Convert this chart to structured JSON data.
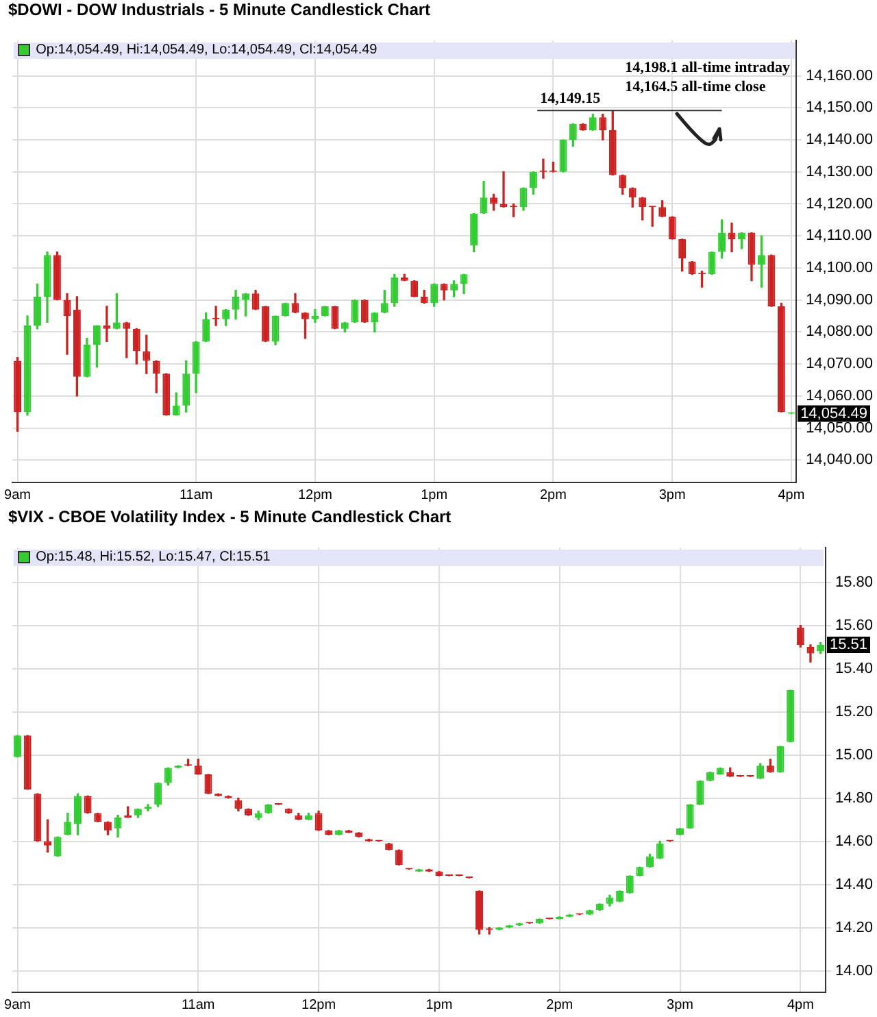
{
  "chart_data": [
    {
      "type": "candlestick",
      "title": "$DOWI - DOW Industrials - 5 Minute Candlestick Chart",
      "grid": true,
      "categories": [
        "9am",
        null,
        null,
        null,
        null,
        null,
        null,
        null,
        null,
        null,
        null,
        null,
        null,
        null,
        null,
        null,
        null,
        null,
        "11am",
        null,
        null,
        null,
        null,
        null,
        null,
        null,
        null,
        null,
        null,
        null,
        "12pm",
        null,
        null,
        null,
        null,
        null,
        null,
        null,
        null,
        null,
        null,
        null,
        "1pm",
        null,
        null,
        null,
        null,
        null,
        null,
        null,
        null,
        null,
        null,
        null,
        "2pm",
        null,
        null,
        null,
        null,
        null,
        null,
        null,
        null,
        null,
        null,
        null,
        "3pm",
        null,
        null,
        null,
        null,
        null,
        null,
        null,
        null,
        null,
        null,
        null,
        "4pm"
      ],
      "ohlc": [
        [
          14071,
          14072,
          14049,
          14055
        ],
        [
          14055,
          14085,
          14054,
          14082
        ],
        [
          14082,
          14095,
          14081,
          14091
        ],
        [
          14091,
          14105,
          14083,
          14104
        ],
        [
          14104,
          14105,
          14090,
          14090
        ],
        [
          14090,
          14092,
          14073,
          14085
        ],
        [
          14087,
          14091,
          14060,
          14066
        ],
        [
          14066,
          14078,
          14066,
          14076
        ],
        [
          14076,
          14082,
          14069,
          14082
        ],
        [
          14082,
          14088,
          14077,
          14081
        ],
        [
          14081,
          14092,
          14081,
          14083
        ],
        [
          14083,
          14083,
          14072,
          14081
        ],
        [
          14081,
          14081,
          14070,
          14074
        ],
        [
          14074,
          14079,
          14067,
          14071
        ],
        [
          14071,
          14071,
          14061,
          14067
        ],
        [
          14067,
          14067,
          14054,
          14054
        ],
        [
          14054,
          14061,
          14054,
          14057
        ],
        [
          14057,
          14071,
          14055,
          14067
        ],
        [
          14067,
          14077,
          14061,
          14077
        ],
        [
          14077,
          14086,
          14077,
          14084
        ],
        [
          14084,
          14088,
          14082,
          14084
        ],
        [
          14084,
          14087,
          14082,
          14087
        ],
        [
          14087,
          14093,
          14084,
          14091
        ],
        [
          14090,
          14092,
          14085,
          14092
        ],
        [
          14092,
          14093,
          14087,
          14087
        ],
        [
          14088,
          14088,
          14077,
          14077
        ],
        [
          14077,
          14085,
          14076,
          14085
        ],
        [
          14085,
          14089,
          14085,
          14089
        ],
        [
          14089,
          14092,
          14086,
          14086
        ],
        [
          14086,
          14086,
          14078,
          14084
        ],
        [
          14084,
          14087,
          14083,
          14085
        ],
        [
          14085,
          14088,
          14085,
          14088
        ],
        [
          14088,
          14088,
          14081,
          14081
        ],
        [
          14081,
          14083,
          14080,
          14083
        ],
        [
          14083,
          14090,
          14083,
          14090
        ],
        [
          14090,
          14090,
          14083,
          14083
        ],
        [
          14083,
          14086,
          14080,
          14086
        ],
        [
          14086,
          14093,
          14086,
          14089
        ],
        [
          14089,
          14098,
          14088,
          14097
        ],
        [
          14097,
          14098,
          14096,
          14096
        ],
        [
          14096,
          14096,
          14091,
          14091
        ],
        [
          14091,
          14093,
          14089,
          14089
        ],
        [
          14089,
          14095,
          14088,
          14095
        ],
        [
          14095,
          14095,
          14090,
          14093
        ],
        [
          14093,
          14096,
          14091,
          14095
        ],
        [
          14095,
          14098,
          14092,
          14098
        ],
        [
          14107,
          14117,
          14105,
          14117
        ],
        [
          14117,
          14127,
          14117,
          14122
        ],
        [
          14122,
          14123,
          14118,
          14120
        ],
        [
          14120,
          14130,
          14119,
          14119
        ],
        [
          14119,
          14120,
          14116,
          14119
        ],
        [
          14119,
          14125,
          14118,
          14125
        ],
        [
          14125,
          14130,
          14123,
          14130
        ],
        [
          14130,
          14134,
          14128,
          14130
        ],
        [
          14130,
          14133,
          14130,
          14130
        ],
        [
          14130,
          14140,
          14130,
          14140
        ],
        [
          14140,
          14145,
          14138,
          14145
        ],
        [
          14145,
          14145,
          14143,
          14143
        ],
        [
          14143,
          14148,
          14143,
          14147
        ],
        [
          14147,
          14148,
          14140,
          14143
        ],
        [
          14143,
          14149.15,
          14129,
          14129
        ],
        [
          14129,
          14129,
          14123,
          14125
        ],
        [
          14125,
          14125,
          14119,
          14122
        ],
        [
          14122,
          14122,
          14115,
          14119
        ],
        [
          14119,
          14119,
          14113,
          14119
        ],
        [
          14119,
          14121,
          14116,
          14116
        ],
        [
          14116,
          14116,
          14109,
          14109
        ],
        [
          14109,
          14109,
          14099,
          14103
        ],
        [
          14102,
          14102,
          14098,
          14098
        ],
        [
          14098,
          14099,
          14094,
          14098
        ],
        [
          14098,
          14105,
          14098,
          14105
        ],
        [
          14105,
          14115,
          14103,
          14111
        ],
        [
          14111,
          14114,
          14105,
          14109
        ],
        [
          14109,
          14111,
          14106,
          14111
        ],
        [
          14111,
          14111,
          14096,
          14101
        ],
        [
          14101,
          14110,
          14094,
          14104
        ],
        [
          14104,
          14104,
          14088,
          14088
        ],
        [
          14088,
          14089,
          14055,
          14055
        ],
        [
          14054.49,
          14054.49,
          14054.49,
          14054.49
        ]
      ],
      "colors": [
        "#cc2222",
        "#33cc33",
        "#33cc33",
        "#33cc33",
        "#cc2222",
        "#cc2222",
        "#cc2222",
        "#33cc33",
        "#33cc33",
        "#cc2222",
        "#33cc33",
        "#cc2222",
        "#cc2222",
        "#cc2222",
        "#cc2222",
        "#cc2222",
        "#33cc33",
        "#33cc33",
        "#33cc33",
        "#33cc33",
        "#cc2222",
        "#33cc33",
        "#33cc33",
        "#33cc33",
        "#cc2222",
        "#cc2222",
        "#33cc33",
        "#33cc33",
        "#cc2222",
        "#cc2222",
        "#33cc33",
        "#33cc33",
        "#cc2222",
        "#33cc33",
        "#33cc33",
        "#cc2222",
        "#33cc33",
        "#33cc33",
        "#33cc33",
        "#cc2222",
        "#cc2222",
        "#cc2222",
        "#33cc33",
        "#cc2222",
        "#33cc33",
        "#33cc33",
        "#33cc33",
        "#33cc33",
        "#cc2222",
        "#cc2222",
        "#cc2222",
        "#33cc33",
        "#33cc33",
        "#cc2222",
        "#cc2222",
        "#33cc33",
        "#33cc33",
        "#cc2222",
        "#33cc33",
        "#cc2222",
        "#cc2222",
        "#cc2222",
        "#cc2222",
        "#cc2222",
        "#cc2222",
        "#cc2222",
        "#cc2222",
        "#cc2222",
        "#cc2222",
        "#cc2222",
        "#33cc33",
        "#33cc33",
        "#cc2222",
        "#33cc33",
        "#cc2222",
        "#33cc33",
        "#cc2222",
        "#cc2222",
        "#33cc33"
      ],
      "ylim": [
        14033,
        14171
      ],
      "yticks": [
        {
          "value": 14040,
          "label": "14,040.00"
        },
        {
          "value": 14050,
          "label": "14,050.00"
        },
        {
          "value": 14060,
          "label": "14,060.00"
        },
        {
          "value": 14070,
          "label": "14,070.00"
        },
        {
          "value": 14080,
          "label": "14,080.00"
        },
        {
          "value": 14090,
          "label": "14,090.00"
        },
        {
          "value": 14100,
          "label": "14,100.00"
        },
        {
          "value": 14110,
          "label": "14,110.00"
        },
        {
          "value": 14120,
          "label": "14,120.00"
        },
        {
          "value": 14130,
          "label": "14,130.00"
        },
        {
          "value": 14140,
          "label": "14,140.00"
        },
        {
          "value": 14150,
          "label": "14,150.00"
        },
        {
          "value": 14160,
          "label": "14,160.00"
        }
      ],
      "annotations": [
        "Op:14,054.49, Hi:14,054.49, Lo:14,054.49, Cl:14,054.49",
        "14,198.1 all-time intraday",
        "14,164.5 all-time close",
        "14,149.15",
        "14,054.49"
      ]
    },
    {
      "type": "candlestick",
      "title": "$VIX - CBOE Volatility Index - 5 Minute Candlestick Chart",
      "grid": true,
      "categories": [
        "9am",
        null,
        null,
        null,
        null,
        null,
        null,
        null,
        null,
        null,
        null,
        null,
        null,
        null,
        null,
        null,
        null,
        null,
        "11am",
        null,
        null,
        null,
        null,
        null,
        null,
        null,
        null,
        null,
        null,
        null,
        "12pm",
        null,
        null,
        null,
        null,
        null,
        null,
        null,
        null,
        null,
        null,
        null,
        "1pm",
        null,
        null,
        null,
        null,
        null,
        null,
        null,
        null,
        null,
        null,
        null,
        "2pm",
        null,
        null,
        null,
        null,
        null,
        null,
        null,
        null,
        null,
        null,
        null,
        "3pm",
        null,
        null,
        null,
        null,
        null,
        null,
        null,
        null,
        null,
        null,
        null,
        "4pm",
        null,
        null
      ],
      "ohlc": [
        [
          14.99,
          15.09,
          14.99,
          15.09
        ],
        [
          15.09,
          15.09,
          14.84,
          14.84
        ],
        [
          14.82,
          14.82,
          14.6,
          14.6
        ],
        [
          14.6,
          14.7,
          14.55,
          14.58
        ],
        [
          14.53,
          14.62,
          14.53,
          14.62
        ],
        [
          14.63,
          14.73,
          14.63,
          14.69
        ],
        [
          14.68,
          14.82,
          14.63,
          14.81
        ],
        [
          14.81,
          14.81,
          14.73,
          14.73
        ],
        [
          14.73,
          14.73,
          14.69,
          14.69
        ],
        [
          14.69,
          14.69,
          14.63,
          14.65
        ],
        [
          14.66,
          14.72,
          14.62,
          14.71
        ],
        [
          14.72,
          14.76,
          14.71,
          14.71
        ],
        [
          14.72,
          14.75,
          14.71,
          14.75
        ],
        [
          14.75,
          14.77,
          14.74,
          14.76
        ],
        [
          14.77,
          14.87,
          14.76,
          14.87
        ],
        [
          14.87,
          14.94,
          14.86,
          14.94
        ],
        [
          14.94,
          14.95,
          14.94,
          14.95
        ],
        [
          14.95,
          14.98,
          14.95,
          14.95
        ],
        [
          14.95,
          14.98,
          14.91,
          14.91
        ],
        [
          14.91,
          14.91,
          14.82,
          14.82
        ],
        [
          14.82,
          14.82,
          14.81,
          14.81
        ],
        [
          14.81,
          14.81,
          14.8,
          14.8
        ],
        [
          14.79,
          14.8,
          14.74,
          14.75
        ],
        [
          14.75,
          14.75,
          14.72,
          14.72
        ],
        [
          14.71,
          14.74,
          14.7,
          14.73
        ],
        [
          14.73,
          14.77,
          14.73,
          14.77
        ],
        [
          14.77,
          14.77,
          14.77,
          14.77
        ],
        [
          14.75,
          14.75,
          14.73,
          14.73
        ],
        [
          14.72,
          14.73,
          14.7,
          14.7
        ],
        [
          14.7,
          14.73,
          14.7,
          14.72
        ],
        [
          14.73,
          14.74,
          14.65,
          14.65
        ],
        [
          14.65,
          14.65,
          14.63,
          14.63
        ],
        [
          14.63,
          14.65,
          14.63,
          14.65
        ],
        [
          14.65,
          14.65,
          14.64,
          14.64
        ],
        [
          14.64,
          14.64,
          14.62,
          14.62
        ],
        [
          14.61,
          14.61,
          14.6,
          14.6
        ],
        [
          14.6,
          14.6,
          14.6,
          14.6
        ],
        [
          14.59,
          14.59,
          14.56,
          14.56
        ],
        [
          14.56,
          14.56,
          14.49,
          14.49
        ],
        [
          14.47,
          14.47,
          14.47,
          14.47
        ],
        [
          14.46,
          14.47,
          14.46,
          14.47
        ],
        [
          14.47,
          14.47,
          14.46,
          14.46
        ],
        [
          14.46,
          14.46,
          14.44,
          14.44
        ],
        [
          14.44,
          14.44,
          14.44,
          14.44
        ],
        [
          14.44,
          14.44,
          14.44,
          14.44
        ],
        [
          14.43,
          14.43,
          14.43,
          14.43
        ],
        [
          14.37,
          14.37,
          14.17,
          14.19
        ],
        [
          14.19,
          14.2,
          14.17,
          14.19
        ],
        [
          14.19,
          14.2,
          14.19,
          14.2
        ],
        [
          14.2,
          14.21,
          14.2,
          14.21
        ],
        [
          14.21,
          14.22,
          14.21,
          14.22
        ],
        [
          14.22,
          14.22,
          14.22,
          14.22
        ],
        [
          14.22,
          14.24,
          14.22,
          14.24
        ],
        [
          14.24,
          14.24,
          14.24,
          14.24
        ],
        [
          14.24,
          14.25,
          14.24,
          14.25
        ],
        [
          14.25,
          14.26,
          14.25,
          14.26
        ],
        [
          14.26,
          14.26,
          14.26,
          14.26
        ],
        [
          14.26,
          14.28,
          14.26,
          14.28
        ],
        [
          14.28,
          14.31,
          14.28,
          14.31
        ],
        [
          14.31,
          14.35,
          14.3,
          14.34
        ],
        [
          14.32,
          14.37,
          14.32,
          14.37
        ],
        [
          14.36,
          14.44,
          14.36,
          14.44
        ],
        [
          14.44,
          14.48,
          14.44,
          14.48
        ],
        [
          14.48,
          14.54,
          14.48,
          14.53
        ],
        [
          14.52,
          14.6,
          14.52,
          14.59
        ],
        [
          14.6,
          14.6,
          14.6,
          14.6
        ],
        [
          14.63,
          14.66,
          14.63,
          14.66
        ],
        [
          14.66,
          14.77,
          14.66,
          14.77
        ],
        [
          14.77,
          14.88,
          14.77,
          14.88
        ],
        [
          14.88,
          14.92,
          14.88,
          14.92
        ],
        [
          14.91,
          14.94,
          14.91,
          14.94
        ],
        [
          14.92,
          14.94,
          14.9,
          14.9
        ],
        [
          14.9,
          14.9,
          14.9,
          14.9
        ],
        [
          14.9,
          14.9,
          14.9,
          14.9
        ],
        [
          14.89,
          14.96,
          14.89,
          14.95
        ],
        [
          14.95,
          14.98,
          14.92,
          14.92
        ],
        [
          14.92,
          15.04,
          14.92,
          15.04
        ],
        [
          15.06,
          15.3,
          15.06,
          15.3
        ],
        [
          15.59,
          15.6,
          15.5,
          15.51
        ],
        [
          15.5,
          15.51,
          15.43,
          15.47
        ],
        [
          15.48,
          15.52,
          15.47,
          15.51
        ]
      ],
      "colors": [
        "#33cc33",
        "#cc2222",
        "#cc2222",
        "#cc2222",
        "#33cc33",
        "#33cc33",
        "#33cc33",
        "#cc2222",
        "#cc2222",
        "#cc2222",
        "#33cc33",
        "#cc2222",
        "#33cc33",
        "#33cc33",
        "#33cc33",
        "#33cc33",
        "#33cc33",
        "#cc2222",
        "#cc2222",
        "#cc2222",
        "#cc2222",
        "#cc2222",
        "#cc2222",
        "#cc2222",
        "#33cc33",
        "#33cc33",
        "#cc2222",
        "#cc2222",
        "#cc2222",
        "#33cc33",
        "#cc2222",
        "#cc2222",
        "#33cc33",
        "#cc2222",
        "#cc2222",
        "#cc2222",
        "#cc2222",
        "#cc2222",
        "#cc2222",
        "#cc2222",
        "#33cc33",
        "#cc2222",
        "#cc2222",
        "#cc2222",
        "#cc2222",
        "#cc2222",
        "#cc2222",
        "#cc2222",
        "#33cc33",
        "#33cc33",
        "#33cc33",
        "#cc2222",
        "#33cc33",
        "#cc2222",
        "#33cc33",
        "#33cc33",
        "#cc2222",
        "#33cc33",
        "#33cc33",
        "#33cc33",
        "#33cc33",
        "#33cc33",
        "#33cc33",
        "#33cc33",
        "#33cc33",
        "#cc2222",
        "#33cc33",
        "#33cc33",
        "#33cc33",
        "#33cc33",
        "#33cc33",
        "#cc2222",
        "#cc2222",
        "#cc2222",
        "#33cc33",
        "#cc2222",
        "#33cc33",
        "#33cc33",
        "#cc2222",
        "#cc2222",
        "#33cc33"
      ],
      "ylim": [
        13.9,
        15.96
      ],
      "yticks": [
        {
          "value": 14,
          "label": "14.00"
        },
        {
          "value": 14.2,
          "label": "14.20"
        },
        {
          "value": 14.4,
          "label": "14.40"
        },
        {
          "value": 14.6,
          "label": "14.60"
        },
        {
          "value": 14.8,
          "label": "14.80"
        },
        {
          "value": 15,
          "label": "15.00"
        },
        {
          "value": 15.2,
          "label": "15.20"
        },
        {
          "value": 15.4,
          "label": "15.40"
        },
        {
          "value": 15.6,
          "label": "15.60"
        },
        {
          "value": 15.8,
          "label": "15.80"
        }
      ],
      "annotations": [
        "Op:15.48, Hi:15.52, Lo:15.47, Cl:15.51",
        "15.51"
      ]
    }
  ]
}
